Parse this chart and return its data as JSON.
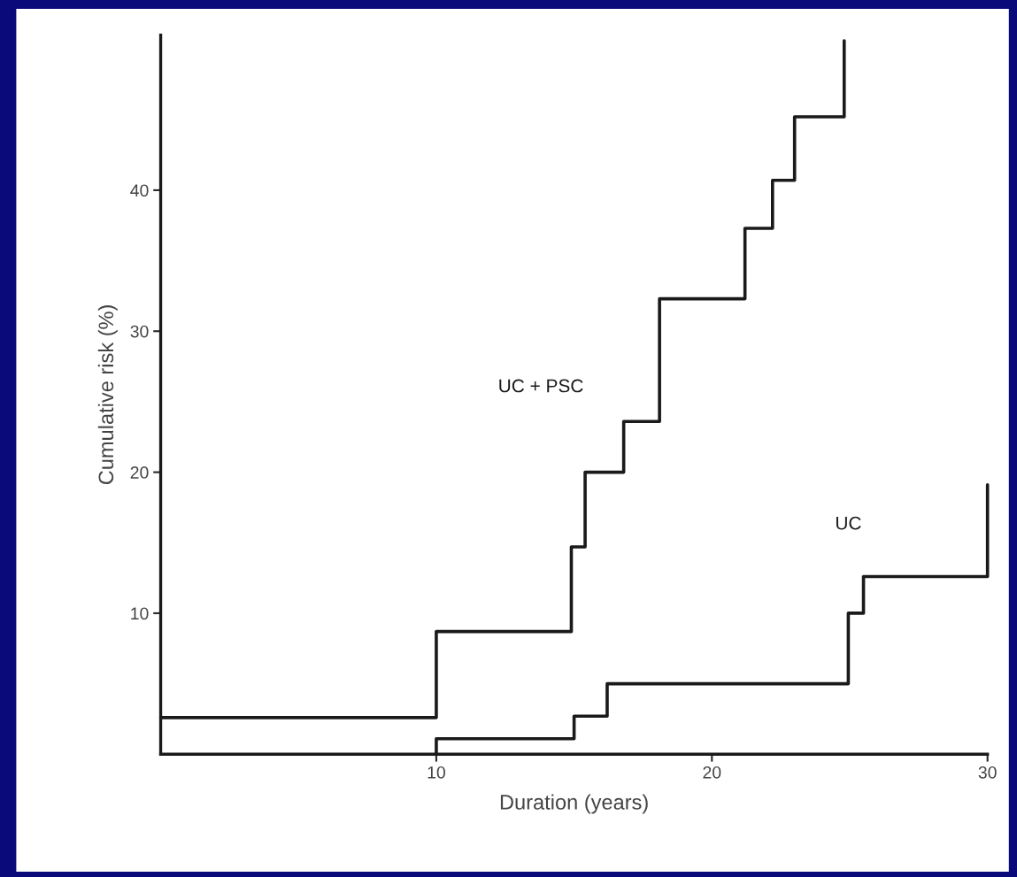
{
  "chart_data": {
    "type": "step",
    "xlabel": "Duration (years)",
    "ylabel": "Cumulative risk (%)",
    "xlim": [
      0,
      30
    ],
    "ylim": [
      0,
      51
    ],
    "xticks": [
      10,
      20,
      30
    ],
    "yticks": [
      10,
      20,
      30,
      40
    ],
    "grid": false,
    "legend": false,
    "marker": "none",
    "line_style": "solid",
    "series": [
      {
        "name": "UC + PSC",
        "color": "#1a1a1a",
        "x": [
          0,
          10,
          14.9,
          15.4,
          16.8,
          18.1,
          21.2,
          22.2,
          23.0,
          24.8
        ],
        "values": [
          2.6,
          8.7,
          14.7,
          20,
          23.6,
          32.3,
          37.3,
          40.7,
          45.2,
          50.6
        ]
      },
      {
        "name": "UC",
        "color": "#1a1a1a",
        "x": [
          10,
          10,
          15.0,
          16.2,
          24.95,
          25.5,
          30
        ],
        "values": [
          0,
          1.1,
          2.7,
          5.0,
          10.0,
          12.6,
          19.1
        ]
      }
    ]
  }
}
